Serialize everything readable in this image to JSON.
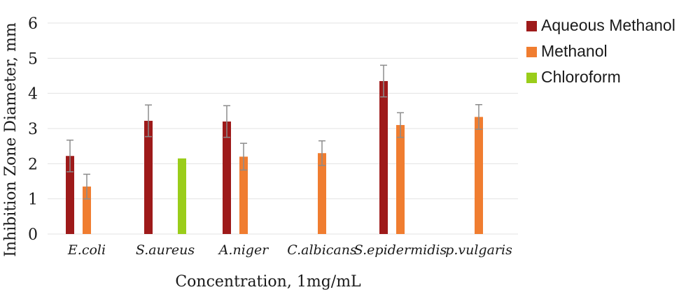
{
  "chart_data": {
    "type": "bar",
    "categories": [
      "E.coli",
      "S.aureus",
      "A.niger",
      "C.albicans",
      "S.epidermidis",
      "p.vulgaris"
    ],
    "series": [
      {
        "name": "Aqueous Methanol",
        "color": "#9e1a1a",
        "values": [
          2.22,
          3.22,
          3.2,
          null,
          4.35,
          null
        ],
        "errors": [
          0.45,
          0.45,
          0.45,
          null,
          0.45,
          null
        ]
      },
      {
        "name": "Methanol",
        "color": "#f07d30",
        "values": [
          1.35,
          null,
          2.2,
          2.3,
          3.1,
          3.33
        ],
        "errors": [
          0.35,
          null,
          0.38,
          0.35,
          0.35,
          0.35
        ]
      },
      {
        "name": "Chloroform",
        "color": "#9acd1a",
        "values": [
          null,
          2.15,
          null,
          null,
          null,
          null
        ],
        "errors": [
          null,
          null,
          null,
          null,
          null,
          null
        ]
      }
    ],
    "xlabel": "Concentration, 1mg/mL",
    "ylabel": "Inhibition Zone Diameter, mm",
    "ylim": [
      0,
      6
    ],
    "yticks": [
      "0",
      "1",
      "2",
      "3",
      "4",
      "5",
      "6"
    ],
    "grid": true,
    "legend_position": "right"
  }
}
